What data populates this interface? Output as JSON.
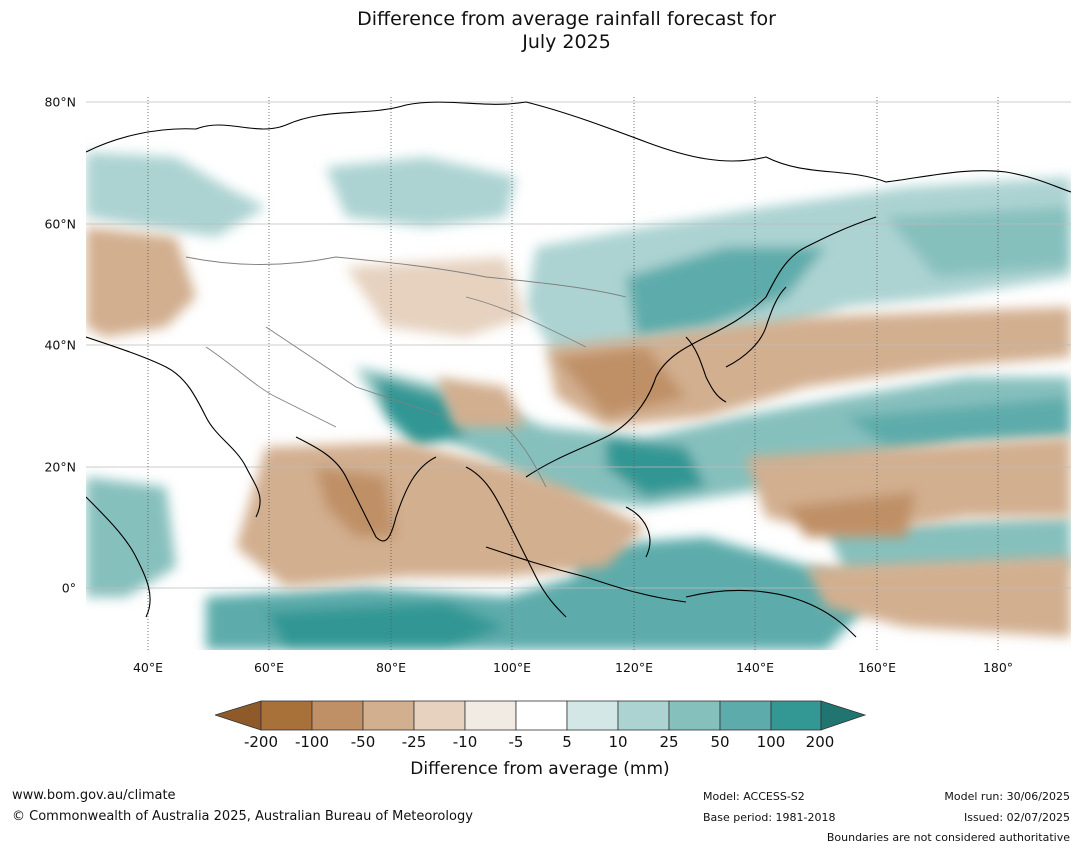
{
  "title": {
    "line1": "Difference from average rainfall forecast for",
    "line2": "July 2025"
  },
  "map": {
    "lat_ticks": [
      "80°N",
      "60°N",
      "40°N",
      "20°N",
      "0°"
    ],
    "lon_ticks": [
      "40°E",
      "60°E",
      "80°E",
      "100°E",
      "120°E",
      "140°E",
      "160°E",
      "180°"
    ],
    "land_border_color": "#000000",
    "country_border_color": "#808080"
  },
  "colorbar": {
    "labels": [
      "-200",
      "-100",
      "-50",
      "-25",
      "-10",
      "-5",
      "5",
      "10",
      "25",
      "50",
      "100",
      "200"
    ],
    "colors": [
      "#a9713a",
      "#bf9066",
      "#d2af8f",
      "#e6d2bf",
      "#f1ebe4",
      "#ffffff",
      "#d3e8e6",
      "#acd3d2",
      "#86c0bd",
      "#5dacab",
      "#339794",
      "#217570",
      "#8e5a2a"
    ],
    "title": "Difference from average (mm)"
  },
  "footer": {
    "website": "www.bom.gov.au/climate",
    "copyright": "© Commonwealth of Australia 2025, Australian Bureau of Meteorology",
    "model": "Model: ACCESS-S2",
    "base_period": "Base period: 1981-2018",
    "model_run": "Model run: 30/06/2025",
    "issued": "Issued: 02/07/2025",
    "disclaimer": "Boundaries are not considered authoritative"
  }
}
